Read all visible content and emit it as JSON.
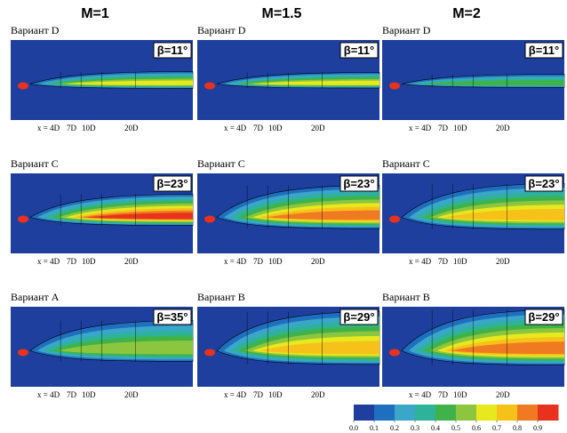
{
  "headers": [
    "M=1",
    "M=1.5",
    "M=2"
  ],
  "panels": [
    [
      {
        "variant": "Вариант D",
        "beta": "β=11°",
        "xlabels": [
          "x = 4D",
          "7D",
          "10D",
          "20D"
        ]
      },
      {
        "variant": "Вариант D",
        "beta": "β=11°",
        "xlabels": [
          "x = 4D",
          "7D",
          "10D",
          "20D"
        ]
      },
      {
        "variant": "Вариант D",
        "beta": "β=11°",
        "xlabels": [
          "x = 4D",
          "7D",
          "10D",
          "20D"
        ]
      }
    ],
    [
      {
        "variant": "Вариант C",
        "beta": "β=23°",
        "xlabels": [
          "x = 4D",
          "7D",
          "10D",
          "20D"
        ]
      },
      {
        "variant": "Вариант C",
        "beta": "β=23°",
        "xlabels": [
          "x = 4D",
          "7D",
          "10D",
          "20D"
        ]
      },
      {
        "variant": "Вариант C",
        "beta": "β=23°",
        "xlabels": [
          "x = 4D",
          "7D",
          "10D",
          "20D"
        ]
      }
    ],
    [
      {
        "variant": "Вариант A",
        "beta": "β=35°",
        "xlabels": [
          "x = 4D",
          "7D",
          "10D",
          "20D"
        ]
      },
      {
        "variant": "Вариант B",
        "beta": "β=29°",
        "xlabels": [
          "x = 4D",
          "7D",
          "10D",
          "20D"
        ]
      },
      {
        "variant": "Вариант B",
        "beta": "β=29°",
        "xlabels": [
          "x = 4D",
          "7D",
          "10D",
          "20D"
        ]
      }
    ]
  ],
  "colorbar": {
    "colors": [
      "#1f3f9e",
      "#1f6fc0",
      "#3aa6c8",
      "#2eb39a",
      "#3fb34a",
      "#8cc63f",
      "#e8e81e",
      "#f6c21a",
      "#f07a22",
      "#e8321e"
    ],
    "ticks": [
      {
        "value": 0,
        "label": "0.0"
      },
      {
        "value": 0.1,
        "label": "0.1"
      },
      {
        "value": 0.2,
        "label": "0.2"
      },
      {
        "value": 0.3,
        "label": "0.3"
      },
      {
        "value": 0.4,
        "label": "0.4"
      },
      {
        "value": 0.5,
        "label": "0.5"
      },
      {
        "value": 0.6,
        "label": "0.6"
      },
      {
        "value": 0.7,
        "label": "0.7"
      },
      {
        "value": 0.8,
        "label": "0.8"
      },
      {
        "value": 0.9,
        "label": "0.9"
      }
    ]
  }
}
